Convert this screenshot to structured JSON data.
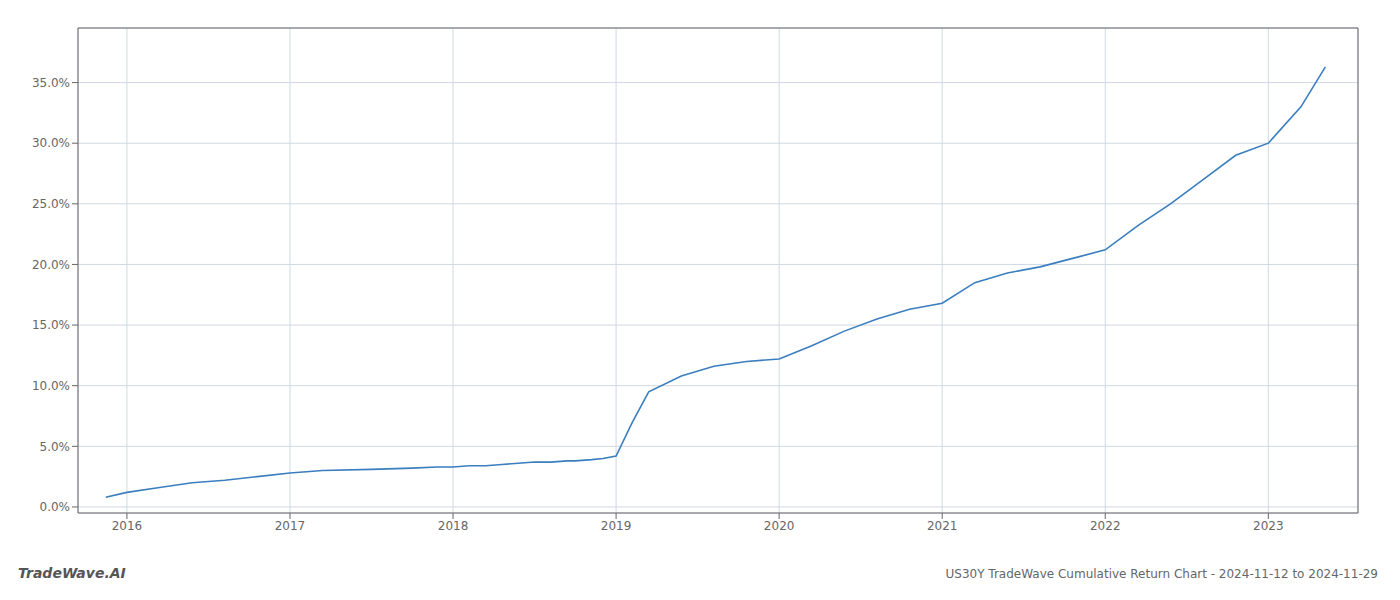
{
  "chart_data": {
    "type": "line",
    "title": "US30Y TradeWave Cumulative Return Chart - 2024-11-12 to 2024-11-29",
    "annotations": [
      "TradeWave.AI"
    ],
    "x": [
      2015.87,
      2016.0,
      2016.2,
      2016.4,
      2016.6,
      2016.8,
      2017.0,
      2017.2,
      2017.5,
      2017.75,
      2017.9,
      2018.0,
      2018.1,
      2018.2,
      2018.3,
      2018.4,
      2018.5,
      2018.6,
      2018.7,
      2018.75,
      2018.85,
      2018.92,
      2019.0,
      2019.1,
      2019.2,
      2019.4,
      2019.6,
      2019.8,
      2020.0,
      2020.2,
      2020.4,
      2020.6,
      2020.8,
      2021.0,
      2021.2,
      2021.4,
      2021.6,
      2021.8,
      2022.0,
      2022.2,
      2022.4,
      2022.6,
      2022.8,
      2023.0,
      2023.2,
      2023.35
    ],
    "values": [
      0.008,
      0.012,
      0.016,
      0.02,
      0.022,
      0.025,
      0.028,
      0.03,
      0.031,
      0.032,
      0.033,
      0.033,
      0.034,
      0.034,
      0.035,
      0.036,
      0.037,
      0.037,
      0.038,
      0.038,
      0.039,
      0.04,
      0.042,
      0.07,
      0.095,
      0.108,
      0.116,
      0.12,
      0.122,
      0.133,
      0.145,
      0.155,
      0.163,
      0.168,
      0.185,
      0.193,
      0.198,
      0.205,
      0.212,
      0.232,
      0.25,
      0.27,
      0.29,
      0.3,
      0.33,
      0.363
    ],
    "color": "#3a7ebf",
    "xlim": [
      2015.7,
      2023.55
    ],
    "ylim": [
      -0.005,
      0.395
    ],
    "xticks": [
      2016,
      2017,
      2018,
      2019,
      2020,
      2021,
      2022,
      2023
    ],
    "yticks": [
      {
        "value": 0.0,
        "label": "0.0%"
      },
      {
        "value": 0.05,
        "label": "5.0%"
      },
      {
        "value": 0.1,
        "label": "10.0%"
      },
      {
        "value": 0.15,
        "label": "15.0%"
      },
      {
        "value": 0.2,
        "label": "20.0%"
      },
      {
        "value": 0.25,
        "label": "25.0%"
      },
      {
        "value": 0.3,
        "label": "30.0%"
      },
      {
        "value": 0.35,
        "label": "35.0%"
      }
    ],
    "grid": true
  }
}
